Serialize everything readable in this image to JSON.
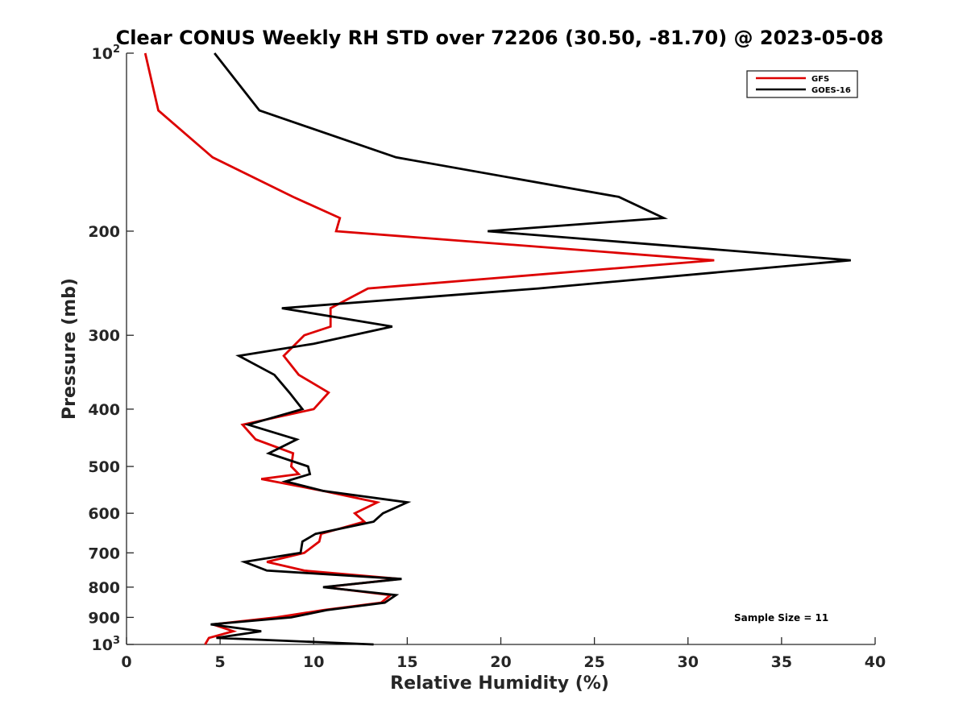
{
  "chart_data": {
    "type": "line",
    "title": "Clear CONUS Weekly RH STD over 72206 (30.50, -81.70) @ 2023-05-08",
    "xlabel": "Relative Humidity (%)",
    "ylabel": "Pressure (mb)",
    "xlim": [
      0,
      40
    ],
    "ylim": [
      100,
      1000
    ],
    "y_scale": "log",
    "y_reversed": true,
    "grid": false,
    "legend_position": "top-right",
    "x_ticks": [
      "0",
      "5",
      "10",
      "15",
      "20",
      "25",
      "30",
      "35",
      "40"
    ],
    "y_ticks": [
      {
        "value": 100,
        "base": "10",
        "exp": "2"
      },
      {
        "value": 200,
        "label": "200"
      },
      {
        "value": 300,
        "label": "300"
      },
      {
        "value": 400,
        "label": "400"
      },
      {
        "value": 500,
        "label": "500"
      },
      {
        "value": 600,
        "label": "600"
      },
      {
        "value": 700,
        "label": "700"
      },
      {
        "value": 800,
        "label": "800"
      },
      {
        "value": 900,
        "label": "900"
      },
      {
        "value": 1000,
        "base": "10",
        "exp": "3"
      }
    ],
    "annotation": "Sample Size = 11",
    "series": [
      {
        "name": "GFS",
        "color": "#dd0000",
        "points": [
          [
            1.0,
            100
          ],
          [
            1.7,
            125
          ],
          [
            4.6,
            150
          ],
          [
            8.9,
            175
          ],
          [
            11.4,
            190
          ],
          [
            11.2,
            200
          ],
          [
            31.4,
            224
          ],
          [
            12.9,
            250
          ],
          [
            10.9,
            270
          ],
          [
            10.9,
            290
          ],
          [
            9.5,
            300
          ],
          [
            8.4,
            325
          ],
          [
            9.2,
            350
          ],
          [
            10.8,
            375
          ],
          [
            10.0,
            400
          ],
          [
            6.2,
            425
          ],
          [
            6.9,
            450
          ],
          [
            8.9,
            475
          ],
          [
            8.8,
            500
          ],
          [
            9.2,
            515
          ],
          [
            7.2,
            525
          ],
          [
            10.5,
            550
          ],
          [
            13.4,
            575
          ],
          [
            12.2,
            600
          ],
          [
            12.7,
            620
          ],
          [
            10.4,
            650
          ],
          [
            10.3,
            670
          ],
          [
            9.5,
            700
          ],
          [
            7.5,
            725
          ],
          [
            9.5,
            750
          ],
          [
            14.6,
            775
          ],
          [
            10.6,
            800
          ],
          [
            14.1,
            825
          ],
          [
            13.6,
            850
          ],
          [
            10.5,
            875
          ],
          [
            8.0,
            900
          ],
          [
            4.6,
            925
          ],
          [
            5.7,
            950
          ],
          [
            4.4,
            975
          ],
          [
            4.2,
            1000
          ]
        ]
      },
      {
        "name": "GOES-16",
        "color": "#000000",
        "points": [
          [
            4.7,
            100
          ],
          [
            7.1,
            125
          ],
          [
            14.4,
            150
          ],
          [
            26.3,
            175
          ],
          [
            28.7,
            190
          ],
          [
            19.3,
            200
          ],
          [
            38.7,
            224
          ],
          [
            22.0,
            250
          ],
          [
            8.3,
            270
          ],
          [
            14.2,
            290
          ],
          [
            10.0,
            310
          ],
          [
            6.0,
            325
          ],
          [
            7.9,
            350
          ],
          [
            8.7,
            375
          ],
          [
            9.4,
            400
          ],
          [
            6.5,
            425
          ],
          [
            9.1,
            450
          ],
          [
            7.6,
            475
          ],
          [
            9.7,
            500
          ],
          [
            9.8,
            515
          ],
          [
            8.5,
            530
          ],
          [
            10.5,
            550
          ],
          [
            15.0,
            575
          ],
          [
            13.7,
            600
          ],
          [
            13.2,
            620
          ],
          [
            10.1,
            650
          ],
          [
            9.4,
            670
          ],
          [
            9.3,
            700
          ],
          [
            6.3,
            725
          ],
          [
            7.5,
            750
          ],
          [
            14.7,
            775
          ],
          [
            10.5,
            800
          ],
          [
            14.4,
            825
          ],
          [
            13.8,
            850
          ],
          [
            10.7,
            875
          ],
          [
            8.8,
            900
          ],
          [
            4.5,
            925
          ],
          [
            7.2,
            950
          ],
          [
            4.8,
            975
          ],
          [
            13.2,
            1000
          ]
        ]
      }
    ]
  }
}
